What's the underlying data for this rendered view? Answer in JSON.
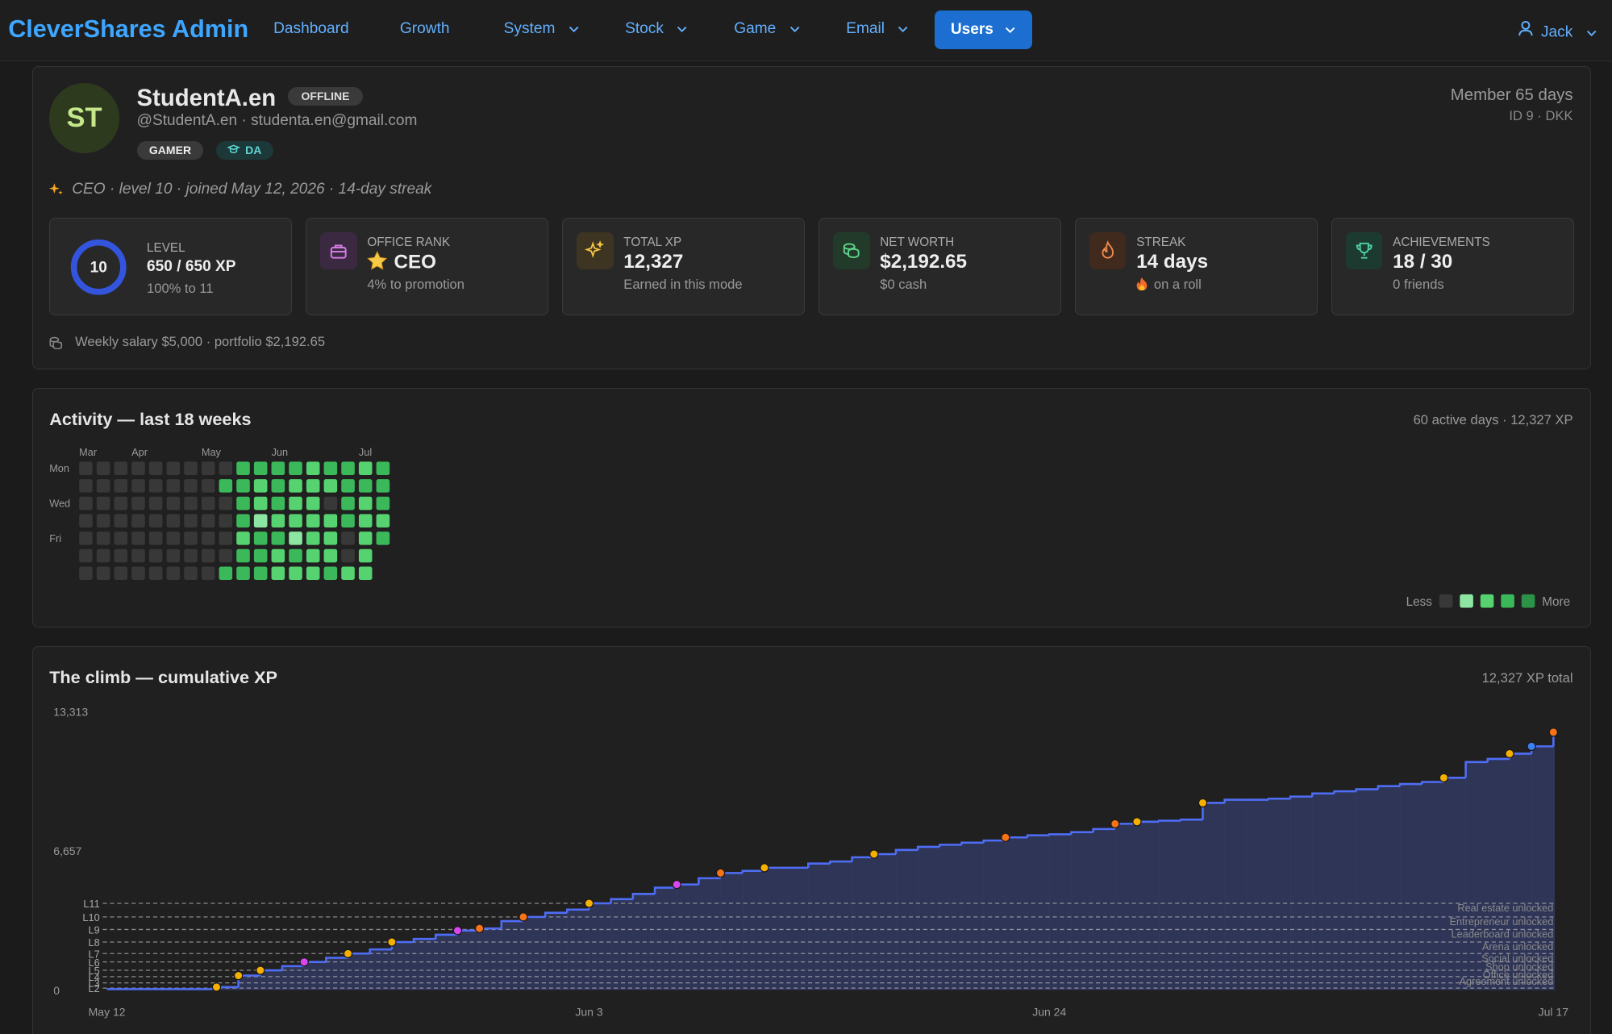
{
  "nav": {
    "brand": "CleverShares Admin",
    "items": [
      "Dashboard",
      "Growth",
      "System",
      "Stock",
      "Game",
      "Email",
      "Users"
    ],
    "user": "Jack"
  },
  "profile": {
    "initials": "ST",
    "name": "StudentA.en",
    "status": "OFFLINE",
    "handle": "@StudentA.en · studenta.en@gmail.com",
    "badges": [
      "GAMER",
      "DA"
    ],
    "member": "Member 65 days",
    "id": "ID 9 · DKK",
    "tagline": "CEO · level 10 · joined May 12, 2026 · 14-day streak",
    "footer": "Weekly salary $5,000 · portfolio $2,192.65"
  },
  "stats": [
    {
      "label": "LEVEL",
      "badge": "10",
      "value": "650 / 650 XP",
      "sub": "100% to 11"
    },
    {
      "label": "OFFICE RANK",
      "value": "CEO",
      "sub": "4% to promotion"
    },
    {
      "label": "TOTAL XP",
      "value": "12,327",
      "sub": "Earned in this mode"
    },
    {
      "label": "NET WORTH",
      "value": "$2,192.65",
      "sub": "$0 cash"
    },
    {
      "label": "STREAK",
      "value": "14 days",
      "sub": "on a roll"
    },
    {
      "label": "ACHIEVEMENTS",
      "value": "18 / 30",
      "sub": "0 friends"
    }
  ],
  "activity": {
    "title": "Activity — last 18 weeks",
    "summary": "60 active days · 12,327 XP",
    "months": [
      "Mar",
      null,
      null,
      "Apr",
      null,
      null,
      null,
      "May",
      null,
      null,
      null,
      "Jun",
      null,
      null,
      null,
      null,
      "Jul",
      null
    ],
    "days": [
      "Mon",
      null,
      "Wed",
      null,
      "Fri",
      null,
      null
    ],
    "level_colors": [
      "#383838",
      "#8ce6a1",
      "#56d270",
      "#3bb85a",
      "#2c9248"
    ],
    "legend_less": "Less",
    "legend_more": "More",
    "weeks": [
      [
        0,
        0,
        0,
        0,
        0,
        0,
        0
      ],
      [
        0,
        0,
        0,
        0,
        0,
        0,
        0
      ],
      [
        0,
        0,
        0,
        0,
        0,
        0,
        0
      ],
      [
        0,
        0,
        0,
        0,
        0,
        0,
        0
      ],
      [
        0,
        0,
        0,
        0,
        0,
        0,
        0
      ],
      [
        0,
        0,
        0,
        0,
        0,
        0,
        0
      ],
      [
        0,
        0,
        0,
        0,
        0,
        0,
        0
      ],
      [
        0,
        0,
        0,
        0,
        0,
        0,
        0
      ],
      [
        0,
        3,
        0,
        0,
        0,
        0,
        3
      ],
      [
        3,
        3,
        3,
        3,
        2,
        3,
        3
      ],
      [
        3,
        2,
        2,
        1,
        3,
        3,
        3
      ],
      [
        3,
        3,
        3,
        2,
        3,
        2,
        2
      ],
      [
        3,
        2,
        2,
        2,
        1,
        3,
        2
      ],
      [
        2,
        2,
        2,
        2,
        2,
        2,
        2
      ],
      [
        3,
        2,
        0,
        2,
        2,
        2,
        3
      ],
      [
        3,
        3,
        3,
        3,
        0,
        0,
        2
      ],
      [
        2,
        3,
        2,
        2,
        2,
        2,
        2
      ],
      [
        3,
        3,
        3,
        2,
        3,
        null,
        null
      ]
    ]
  },
  "chart_data": {
    "type": "step",
    "title": "The climb — cumulative XP",
    "subtitle": "12,327 XP total",
    "color": "#4f6ef7",
    "area_color": "#333a62",
    "x": [
      "May 12",
      "May 13",
      "May 14",
      "May 15",
      "May 16",
      "May 17",
      "May 18",
      "May 19",
      "May 20",
      "May 21",
      "May 22",
      "May 23",
      "May 24",
      "May 25",
      "May 26",
      "May 27",
      "May 28",
      "May 29",
      "May 30",
      "May 31",
      "Jun 1",
      "Jun 2",
      "Jun 3",
      "Jun 4",
      "Jun 5",
      "Jun 6",
      "Jun 7",
      "Jun 8",
      "Jun 9",
      "Jun 10",
      "Jun 11",
      "Jun 12",
      "Jun 13",
      "Jun 14",
      "Jun 15",
      "Jun 16",
      "Jun 17",
      "Jun 18",
      "Jun 19",
      "Jun 20",
      "Jun 21",
      "Jun 22",
      "Jun 23",
      "Jun 24",
      "Jun 25",
      "Jun 26",
      "Jun 27",
      "Jun 28",
      "Jun 29",
      "Jun 30",
      "Jul 1",
      "Jul 2",
      "Jul 3",
      "Jul 4",
      "Jul 5",
      "Jul 6",
      "Jul 7",
      "Jul 8",
      "Jul 9",
      "Jul 10",
      "Jul 11",
      "Jul 12",
      "Jul 13",
      "Jul 14",
      "Jul 15",
      "Jul 16",
      "Jul 17"
    ],
    "values": [
      50,
      50,
      50,
      50,
      50,
      150,
      700,
      950,
      1150,
      1350,
      1550,
      1750,
      1950,
      2300,
      2450,
      2650,
      2850,
      2950,
      3300,
      3500,
      3700,
      3850,
      4150,
      4350,
      4600,
      4900,
      5050,
      5350,
      5600,
      5700,
      5850,
      5850,
      6050,
      6150,
      6350,
      6500,
      6700,
      6850,
      6950,
      7050,
      7150,
      7300,
      7400,
      7450,
      7550,
      7700,
      7950,
      8050,
      8100,
      8150,
      8950,
      9100,
      9100,
      9150,
      9250,
      9400,
      9500,
      9600,
      9750,
      9850,
      9950,
      10150,
      10900,
      11050,
      11300,
      11650,
      12327
    ],
    "ylim": [
      0,
      13313
    ],
    "yticks": [
      0,
      {
        "value": 6657,
        "label": "6,657"
      },
      {
        "value": 13313,
        "label": "13,313"
      }
    ],
    "xticks": [
      "May 12",
      "Jun 3",
      "Jun 24",
      "Jul 17"
    ],
    "levels": [
      {
        "label": "L2",
        "value": 100
      },
      {
        "label": "L3",
        "value": 350
      },
      {
        "label": "L4",
        "value": 650,
        "unlock": "Agreement unlocked"
      },
      {
        "label": "L5",
        "value": 950,
        "unlock": "Office unlocked"
      },
      {
        "label": "L6",
        "value": 1350,
        "unlock": "Shop unlocked"
      },
      {
        "label": "L7",
        "value": 1750,
        "unlock": "Social unlocked"
      },
      {
        "label": "L8",
        "value": 2300,
        "unlock": "Arena unlocked"
      },
      {
        "label": "L9",
        "value": 2900,
        "unlock": "Leaderboard unlocked"
      },
      {
        "label": "L10",
        "value": 3500,
        "unlock": "Entrepreneur unlocked"
      },
      {
        "label": "L11",
        "value": 4150,
        "unlock": "Real estate unlocked"
      }
    ],
    "milestones": [
      {
        "x": "May 17",
        "color": "#f5b000"
      },
      {
        "x": "May 18",
        "color": "#f5b000"
      },
      {
        "x": "May 19",
        "color": "#f5b000"
      },
      {
        "x": "May 21",
        "color": "#d946ef"
      },
      {
        "x": "May 23",
        "color": "#f5b000"
      },
      {
        "x": "May 25",
        "color": "#f5b000"
      },
      {
        "x": "May 28",
        "color": "#d946ef"
      },
      {
        "x": "May 29",
        "color": "#f97316"
      },
      {
        "x": "May 31",
        "color": "#f97316"
      },
      {
        "x": "Jun 3",
        "color": "#f5b000"
      },
      {
        "x": "Jun 7",
        "color": "#d946ef"
      },
      {
        "x": "Jun 9",
        "color": "#f97316"
      },
      {
        "x": "Jun 11",
        "color": "#f5b000"
      },
      {
        "x": "Jun 16",
        "color": "#f5b000"
      },
      {
        "x": "Jun 22",
        "color": "#f97316"
      },
      {
        "x": "Jun 27",
        "color": "#f97316"
      },
      {
        "x": "Jun 28",
        "color": "#f5b000"
      },
      {
        "x": "Jul 1",
        "color": "#f5b000"
      },
      {
        "x": "Jul 12",
        "color": "#f5b000"
      },
      {
        "x": "Jul 15",
        "color": "#f5b000"
      },
      {
        "x": "Jul 16",
        "color": "#3b82f6"
      },
      {
        "x": "Jul 17",
        "color": "#f97316"
      }
    ]
  }
}
